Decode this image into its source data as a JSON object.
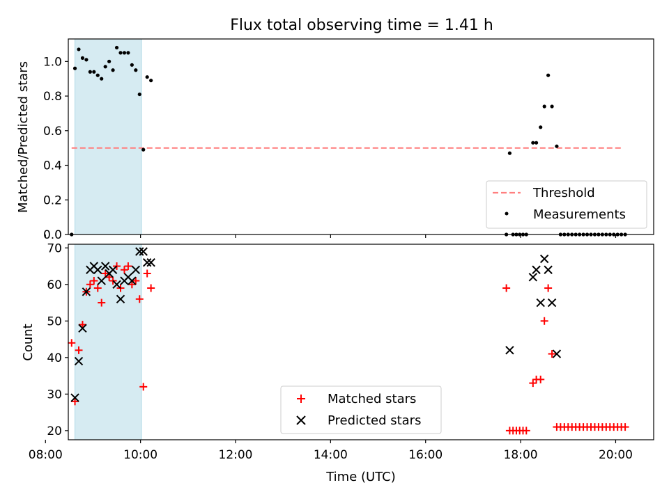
{
  "chart_data": [
    {
      "type": "scatter",
      "title": "Flux total observing time = 1.41 h",
      "ylabel": "Matched/Predicted stars",
      "xlim": [
        8.48,
        20.8
      ],
      "ylim": [
        0,
        1.13
      ],
      "yticks": [
        "0.0",
        "0.2",
        "0.4",
        "0.6",
        "0.8",
        "1.0"
      ],
      "shaded_interval": [
        8.62,
        10.02
      ],
      "shade_color": "#add8e6",
      "threshold": {
        "name": "Threshold",
        "value": 0.5,
        "x_range": [
          8.55,
          20.15
        ],
        "color": "#ff7f7f"
      },
      "series": [
        {
          "name": "Measurements",
          "color": "#000000",
          "points": [
            [
              8.55,
              0.0
            ],
            [
              8.62,
              0.96
            ],
            [
              8.7,
              1.07
            ],
            [
              8.78,
              1.02
            ],
            [
              8.86,
              1.01
            ],
            [
              8.94,
              0.94
            ],
            [
              9.02,
              0.94
            ],
            [
              9.1,
              0.92
            ],
            [
              9.18,
              0.9
            ],
            [
              9.26,
              0.97
            ],
            [
              9.34,
              1.0
            ],
            [
              9.42,
              0.95
            ],
            [
              9.5,
              1.08
            ],
            [
              9.58,
              1.05
            ],
            [
              9.66,
              1.05
            ],
            [
              9.74,
              1.05
            ],
            [
              9.82,
              0.98
            ],
            [
              9.9,
              0.95
            ],
            [
              9.98,
              0.81
            ],
            [
              10.06,
              0.49
            ],
            [
              10.14,
              0.91
            ],
            [
              10.22,
              0.89
            ],
            [
              17.7,
              0.0
            ],
            [
              17.77,
              0.47
            ],
            [
              17.84,
              0.0
            ],
            [
              17.91,
              0.0
            ],
            [
              17.98,
              0.0
            ],
            [
              18.05,
              0.0
            ],
            [
              18.12,
              0.0
            ],
            [
              18.26,
              0.53
            ],
            [
              18.33,
              0.53
            ],
            [
              18.42,
              0.62
            ],
            [
              18.5,
              0.74
            ],
            [
              18.58,
              0.92
            ],
            [
              18.66,
              0.74
            ],
            [
              18.76,
              0.51
            ],
            [
              18.84,
              0.0
            ],
            [
              18.92,
              0.0
            ],
            [
              19.0,
              0.0
            ],
            [
              19.08,
              0.0
            ],
            [
              19.16,
              0.0
            ],
            [
              19.24,
              0.0
            ],
            [
              19.32,
              0.0
            ],
            [
              19.4,
              0.0
            ],
            [
              19.48,
              0.0
            ],
            [
              19.56,
              0.0
            ],
            [
              19.64,
              0.0
            ],
            [
              19.72,
              0.0
            ],
            [
              19.8,
              0.0
            ],
            [
              19.88,
              0.0
            ],
            [
              19.96,
              0.0
            ],
            [
              20.04,
              0.0
            ],
            [
              20.12,
              0.0
            ],
            [
              20.2,
              0.0
            ]
          ]
        }
      ],
      "legend": {
        "position": "lower right",
        "entries": [
          "Threshold",
          "Measurements"
        ]
      }
    },
    {
      "type": "scatter",
      "ylabel": "Count",
      "xlabel": "Time (UTC)",
      "xlim": [
        8.48,
        20.8
      ],
      "ylim": [
        17.5,
        71
      ],
      "xticks": [
        {
          "value": 8,
          "label": "08:00"
        },
        {
          "value": 10,
          "label": "10:00"
        },
        {
          "value": 12,
          "label": "12:00"
        },
        {
          "value": 14,
          "label": "14:00"
        },
        {
          "value": 16,
          "label": "16:00"
        },
        {
          "value": 18,
          "label": "18:00"
        },
        {
          "value": 20,
          "label": "20:00"
        }
      ],
      "yticks": [
        "20",
        "30",
        "40",
        "50",
        "60",
        "70"
      ],
      "shaded_interval": [
        8.62,
        10.02
      ],
      "shade_color": "#add8e6",
      "series": [
        {
          "name": "Matched stars",
          "marker": "plus",
          "color": "#ff0000",
          "points": [
            [
              8.55,
              44
            ],
            [
              8.62,
              28
            ],
            [
              8.7,
              42
            ],
            [
              8.78,
              49
            ],
            [
              8.86,
              58
            ],
            [
              8.94,
              60
            ],
            [
              9.02,
              61
            ],
            [
              9.1,
              59
            ],
            [
              9.18,
              55
            ],
            [
              9.26,
              63
            ],
            [
              9.34,
              62
            ],
            [
              9.42,
              61
            ],
            [
              9.5,
              65
            ],
            [
              9.58,
              59
            ],
            [
              9.66,
              64
            ],
            [
              9.74,
              65
            ],
            [
              9.82,
              60
            ],
            [
              9.9,
              61
            ],
            [
              9.98,
              56
            ],
            [
              10.06,
              32
            ],
            [
              10.14,
              63
            ],
            [
              10.22,
              59
            ],
            [
              17.7,
              59
            ],
            [
              17.77,
              20
            ],
            [
              17.84,
              20
            ],
            [
              17.91,
              20
            ],
            [
              17.98,
              20
            ],
            [
              18.05,
              20
            ],
            [
              18.12,
              20
            ],
            [
              18.26,
              33
            ],
            [
              18.33,
              34
            ],
            [
              18.42,
              34
            ],
            [
              18.5,
              50
            ],
            [
              18.58,
              59
            ],
            [
              18.66,
              41
            ],
            [
              18.76,
              21
            ],
            [
              18.84,
              21
            ],
            [
              18.92,
              21
            ],
            [
              19.0,
              21
            ],
            [
              19.08,
              21
            ],
            [
              19.16,
              21
            ],
            [
              19.24,
              21
            ],
            [
              19.32,
              21
            ],
            [
              19.4,
              21
            ],
            [
              19.48,
              21
            ],
            [
              19.56,
              21
            ],
            [
              19.64,
              21
            ],
            [
              19.72,
              21
            ],
            [
              19.8,
              21
            ],
            [
              19.88,
              21
            ],
            [
              19.96,
              21
            ],
            [
              20.04,
              21
            ],
            [
              20.12,
              21
            ],
            [
              20.2,
              21
            ]
          ]
        },
        {
          "name": "Predicted stars",
          "marker": "x",
          "color": "#000000",
          "points": [
            [
              8.62,
              29
            ],
            [
              8.7,
              39
            ],
            [
              8.78,
              48
            ],
            [
              8.86,
              58
            ],
            [
              8.94,
              64
            ],
            [
              9.02,
              65
            ],
            [
              9.1,
              64
            ],
            [
              9.18,
              61
            ],
            [
              9.26,
              65
            ],
            [
              9.34,
              63
            ],
            [
              9.42,
              64
            ],
            [
              9.5,
              60
            ],
            [
              9.58,
              56
            ],
            [
              9.66,
              61
            ],
            [
              9.74,
              62
            ],
            [
              9.82,
              61
            ],
            [
              9.9,
              64
            ],
            [
              9.98,
              69
            ],
            [
              10.06,
              69
            ],
            [
              10.14,
              66
            ],
            [
              10.22,
              66
            ],
            [
              17.77,
              42
            ],
            [
              18.26,
              62
            ],
            [
              18.33,
              64
            ],
            [
              18.42,
              55
            ],
            [
              18.5,
              67
            ],
            [
              18.58,
              64
            ],
            [
              18.66,
              55
            ],
            [
              18.76,
              41
            ]
          ]
        }
      ],
      "legend": {
        "position": "lower center",
        "entries": [
          "Matched stars",
          "Predicted stars"
        ]
      }
    }
  ]
}
